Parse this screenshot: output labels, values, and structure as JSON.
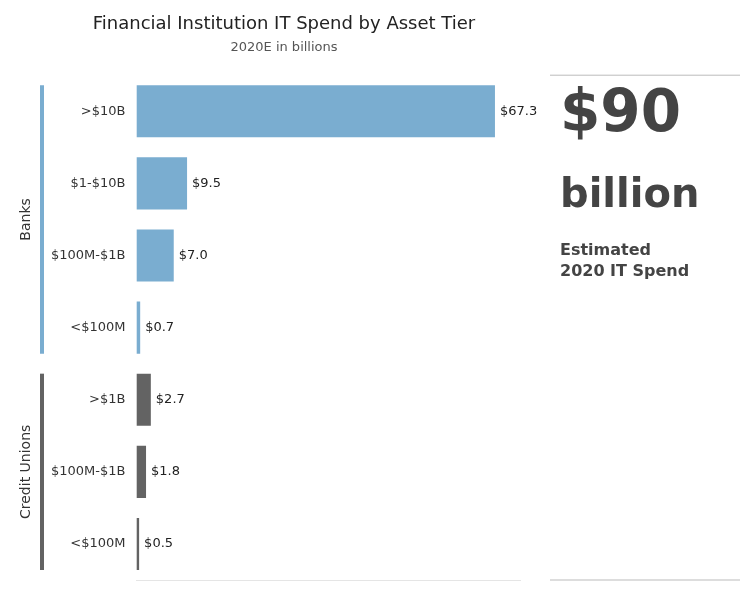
{
  "chart_data": {
    "type": "bar",
    "orientation": "horizontal",
    "title": "Financial Institution IT Spend by Asset Tier",
    "subtitle": "2020E in billions",
    "categories": [
      ">$10B",
      "$1-$10B",
      "$100M-$1B",
      "<$100M",
      ">$1B",
      "$100M-$1B",
      "<$100M"
    ],
    "series": [
      {
        "name": "Banks",
        "color": "#7aadd0",
        "values": [
          67.3,
          9.5,
          7.0,
          0.7,
          null,
          null,
          null
        ],
        "value_labels": [
          "$67.3",
          "$9.5",
          "$7.0",
          "$0.7",
          null,
          null,
          null
        ]
      },
      {
        "name": "Credit Unions",
        "color": "#636363",
        "values": [
          null,
          null,
          null,
          null,
          2.7,
          1.8,
          0.5
        ],
        "value_labels": [
          null,
          null,
          null,
          null,
          "$2.7",
          "$1.8",
          "$0.5"
        ]
      }
    ],
    "xlim": [
      0,
      72
    ],
    "grid": false,
    "data_labels": true,
    "tick_labels": "y",
    "annotations": [
      "$90",
      "billion",
      "Estimated\n2020 IT Spend"
    ]
  }
}
